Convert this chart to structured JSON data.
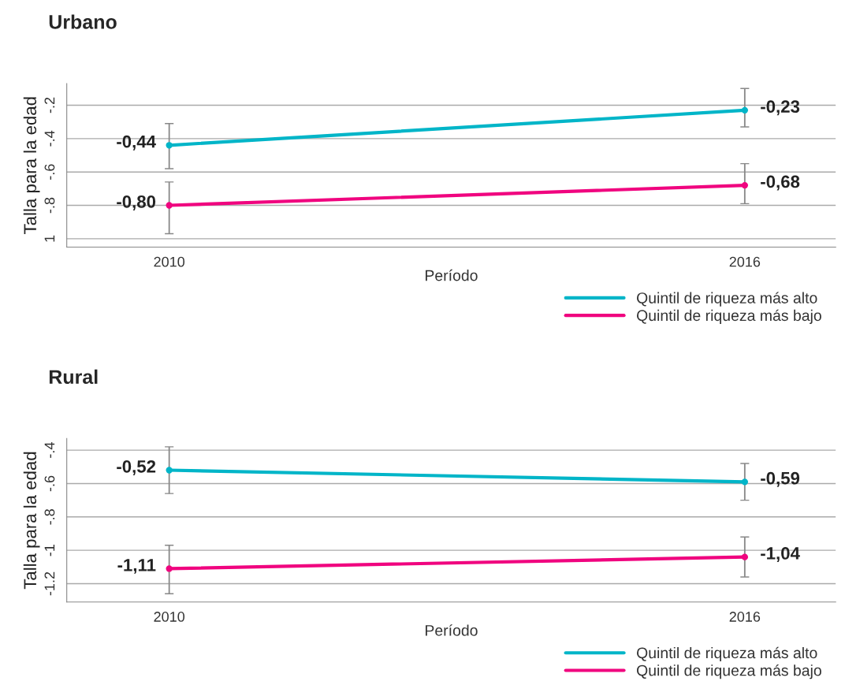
{
  "chart_data": [
    {
      "type": "line",
      "title": "Urbano",
      "xlabel": "Período",
      "ylabel": "Talla para la edad",
      "categories": [
        "2010",
        "2016"
      ],
      "ylim": [
        -1.05,
        -0.07
      ],
      "yticks": [
        {
          "value": -0.2,
          "label": "-.2"
        },
        {
          "value": -0.4,
          "label": "-.4"
        },
        {
          "value": -0.6,
          "label": "-.6"
        },
        {
          "value": -0.8,
          "label": "-.8"
        },
        {
          "value": -1,
          "label": "1"
        }
      ],
      "grid": "y",
      "legend": "bottom right",
      "marker": "circle",
      "line_style": "solid",
      "series": [
        {
          "name": "Quintil de riqueza más alto",
          "color": "#00b5c8",
          "values": [
            -0.44,
            -0.23
          ],
          "errors": [
            [
              -0.58,
              -0.31
            ],
            [
              -0.33,
              -0.1
            ]
          ],
          "value_labels": [
            "-0,44",
            "-0,23"
          ]
        },
        {
          "name": "Quintil de riqueza más bajo",
          "color": "#f0047f",
          "values": [
            -0.8,
            -0.68
          ],
          "errors": [
            [
              -0.97,
              -0.66
            ],
            [
              -0.79,
              -0.55
            ]
          ],
          "value_labels": [
            "-0,80",
            "-0,68"
          ]
        }
      ]
    },
    {
      "type": "line",
      "title": "Rural",
      "xlabel": "Período",
      "ylabel": "Talla para la edad",
      "categories": [
        "2010",
        "2016"
      ],
      "ylim": [
        -1.31,
        -0.33
      ],
      "yticks": [
        {
          "value": -0.4,
          "label": "-.4"
        },
        {
          "value": -0.6,
          "label": "-.6"
        },
        {
          "value": -0.8,
          "label": "-.8"
        },
        {
          "value": -1,
          "label": "-1"
        },
        {
          "value": -1.2,
          "label": "-1.2"
        }
      ],
      "grid": "y",
      "legend": "bottom right",
      "marker": "circle",
      "line_style": "solid",
      "series": [
        {
          "name": "Quintil de riqueza más alto",
          "color": "#00b5c8",
          "values": [
            -0.52,
            -0.59
          ],
          "errors": [
            [
              -0.66,
              -0.38
            ],
            [
              -0.7,
              -0.48
            ]
          ],
          "value_labels": [
            "-0,52",
            "-0,59"
          ]
        },
        {
          "name": "Quintil de riqueza más bajo",
          "color": "#f0047f",
          "values": [
            -1.11,
            -1.04
          ],
          "errors": [
            [
              -1.26,
              -0.97
            ],
            [
              -1.16,
              -0.92
            ]
          ],
          "value_labels": [
            "-1,11",
            "-1,04"
          ]
        }
      ]
    }
  ]
}
